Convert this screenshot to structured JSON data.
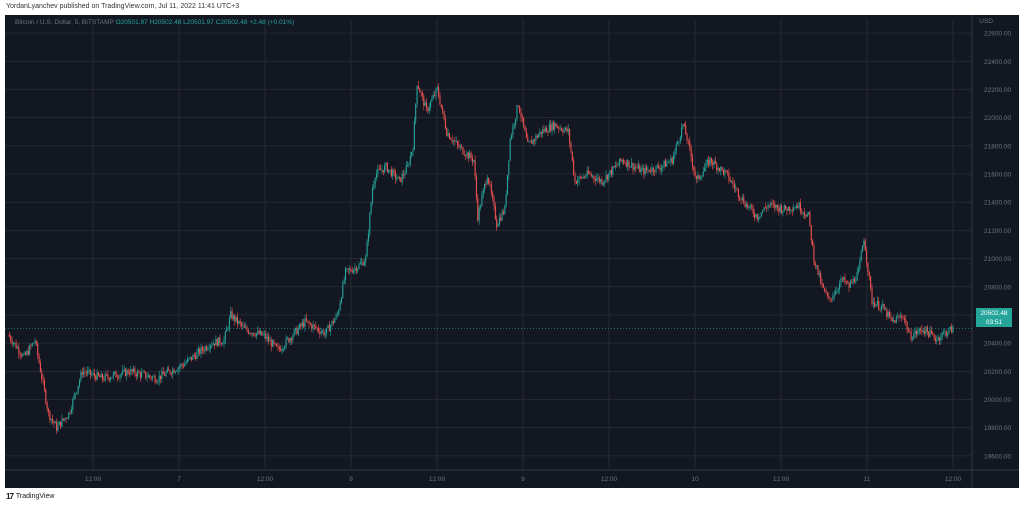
{
  "header": {
    "text": "YordanLyanchev published on TradingView.com, Jul 11, 2022 11:41 UTC+3"
  },
  "legend": {
    "symbol": "Bitcoin / U.S. Dollar, 5, BITSTAMP",
    "open": "O20501.97",
    "high": "H20502.48",
    "low": "L20501.97",
    "close": "C20502.48",
    "change": "+2.48 (+0.01%)"
  },
  "currency": "USD",
  "price_tag": {
    "price": "20502.48",
    "countdown": "03:51"
  },
  "footer": {
    "logo": "TradingView",
    "icon": "tradingview-logo-icon"
  },
  "colors": {
    "background": "#131722",
    "up": "#26a69a",
    "down": "#ef5350",
    "grid": "#2a2e39",
    "text": "#6b7280"
  },
  "chart_data": {
    "type": "candlestick",
    "title": "Bitcoin / U.S. Dollar, 5, BITSTAMP",
    "xlabel": "",
    "ylabel": "USD",
    "x_ticks": [
      "12:00",
      "7",
      "12:00",
      "8",
      "12:00",
      "9",
      "12:00",
      "10",
      "12:00",
      "11",
      "12:00"
    ],
    "y_ticks": [
      19600,
      19800,
      20000,
      20200,
      20400,
      20600,
      20800,
      21000,
      21200,
      21400,
      21600,
      21800,
      22000,
      22200,
      22400,
      22600
    ],
    "ylim": [
      19500,
      22700
    ],
    "grid": true,
    "close_path": [
      [
        0,
        20460
      ],
      [
        12,
        20300
      ],
      [
        20,
        20420
      ],
      [
        30,
        19900
      ],
      [
        36,
        19800
      ],
      [
        45,
        19900
      ],
      [
        55,
        20200
      ],
      [
        70,
        20150
      ],
      [
        90,
        20200
      ],
      [
        110,
        20150
      ],
      [
        130,
        20250
      ],
      [
        150,
        20400
      ],
      [
        160,
        20420
      ],
      [
        165,
        20600
      ],
      [
        175,
        20500
      ],
      [
        190,
        20450
      ],
      [
        200,
        20350
      ],
      [
        210,
        20450
      ],
      [
        220,
        20550
      ],
      [
        235,
        20470
      ],
      [
        244,
        20600
      ],
      [
        250,
        20900
      ],
      [
        260,
        20950
      ],
      [
        265,
        21000
      ],
      [
        270,
        21500
      ],
      [
        272,
        21600
      ],
      [
        280,
        21650
      ],
      [
        290,
        21550
      ],
      [
        296,
        21650
      ],
      [
        300,
        21800
      ],
      [
        303,
        22250
      ],
      [
        310,
        22050
      ],
      [
        318,
        22200
      ],
      [
        325,
        21900
      ],
      [
        333,
        21800
      ],
      [
        345,
        21700
      ],
      [
        348,
        21300
      ],
      [
        355,
        21600
      ],
      [
        362,
        21250
      ],
      [
        368,
        21350
      ],
      [
        372,
        21850
      ],
      [
        378,
        22100
      ],
      [
        385,
        21800
      ],
      [
        395,
        21900
      ],
      [
        405,
        21950
      ],
      [
        415,
        21900
      ],
      [
        420,
        21550
      ],
      [
        430,
        21600
      ],
      [
        440,
        21550
      ],
      [
        455,
        21700
      ],
      [
        470,
        21620
      ],
      [
        483,
        21650
      ],
      [
        492,
        21700
      ],
      [
        500,
        21950
      ],
      [
        503,
        21850
      ],
      [
        510,
        21550
      ],
      [
        520,
        21700
      ],
      [
        532,
        21600
      ],
      [
        540,
        21480
      ],
      [
        547,
        21380
      ],
      [
        555,
        21300
      ],
      [
        563,
        21380
      ],
      [
        575,
        21350
      ],
      [
        585,
        21380
      ],
      [
        593,
        21300
      ],
      [
        597,
        21000
      ],
      [
        603,
        20800
      ],
      [
        608,
        20700
      ],
      [
        618,
        20850
      ],
      [
        623,
        20800
      ],
      [
        630,
        20900
      ],
      [
        634,
        21150
      ],
      [
        640,
        20700
      ],
      [
        648,
        20650
      ],
      [
        655,
        20550
      ],
      [
        663,
        20600
      ],
      [
        668,
        20450
      ],
      [
        678,
        20500
      ],
      [
        688,
        20430
      ],
      [
        693,
        20470
      ],
      [
        700,
        20502
      ]
    ]
  }
}
